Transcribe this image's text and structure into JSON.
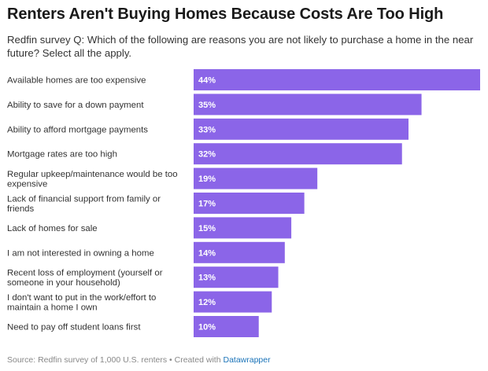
{
  "header": {
    "title": "Renters Aren't Buying Homes Because Costs Are Too High",
    "subtitle": "Redfin survey Q: Which of the following are reasons you are not likely to purchase a home in the near future? Select all the apply."
  },
  "footer": {
    "source": "Source: Redfin survey of 1,000 U.S. renters • Created with ",
    "credit_link": "Datawrapper"
  },
  "colors": {
    "bar": "#8b65e8",
    "label_text": "#333333",
    "value_text": "#ffffff"
  },
  "chart_data": {
    "type": "bar",
    "orientation": "horizontal",
    "title": "Renters Aren't Buying Homes Because Costs Are Too High",
    "subtitle": "Redfin survey Q: Which of the following are reasons you are not likely to purchase a home in the near future? Select all the apply.",
    "xlabel": "",
    "ylabel": "",
    "xlim": [
      0,
      44
    ],
    "grid": false,
    "legend": "none",
    "categories": [
      [
        "Available homes are too expensive"
      ],
      [
        "Ability to save for a down payment"
      ],
      [
        "Ability to afford mortgage payments"
      ],
      [
        "Mortgage rates are too high"
      ],
      [
        "Regular upkeep/maintenance would be too",
        "expensive"
      ],
      [
        "Lack of financial support from family or",
        "friends"
      ],
      [
        "Lack of homes for sale"
      ],
      [
        "I am not interested in owning a home"
      ],
      [
        "Recent loss of employment (yourself or",
        "someone in your household)"
      ],
      [
        "I don't want to put in the work/effort to",
        "maintain a home I own"
      ],
      [
        "Need to pay off student loans first"
      ]
    ],
    "values": [
      44,
      35,
      33,
      32,
      19,
      17,
      15,
      14,
      13,
      12,
      10
    ],
    "value_labels": [
      "44%",
      "35%",
      "33%",
      "32%",
      "19%",
      "17%",
      "15%",
      "14%",
      "13%",
      "12%",
      "10%"
    ]
  }
}
